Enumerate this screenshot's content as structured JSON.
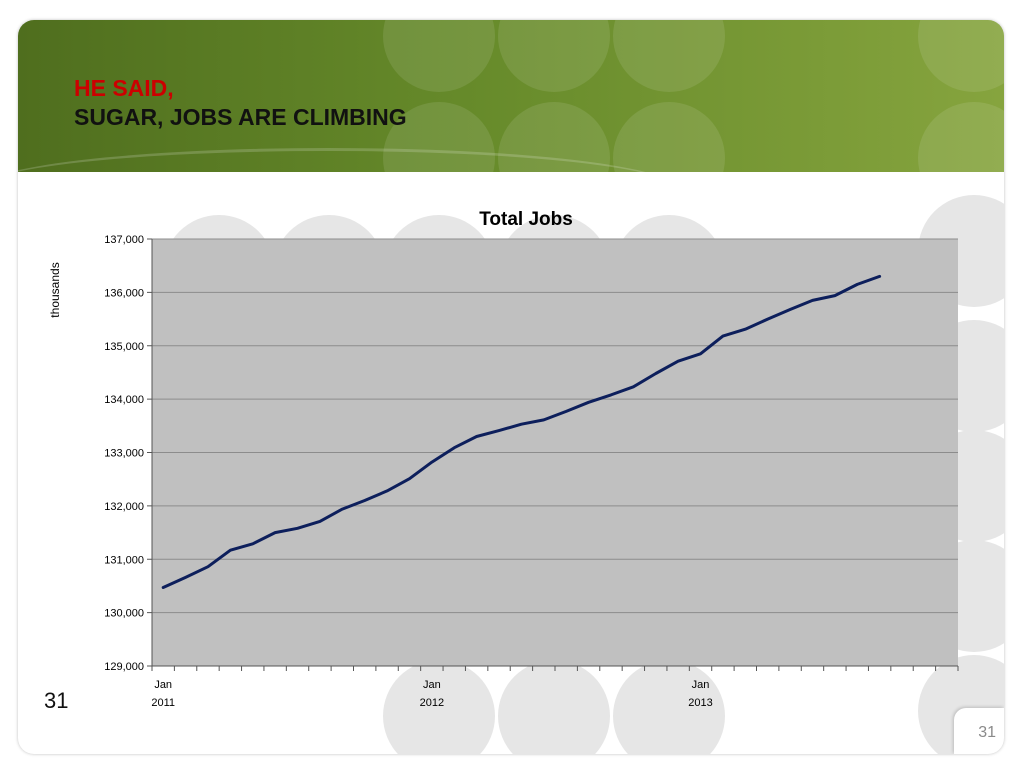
{
  "slide": {
    "title_line1": "HE SAID,",
    "title_line2": "SUGAR, JOBS ARE CLIMBING",
    "page_number_left": "31",
    "page_number_right": "31"
  },
  "colors": {
    "banner_green": "#668a2a",
    "title_red": "#cc0000",
    "plot_bg": "#c0c0c0",
    "line": "#0d1f5c",
    "bubble": "#e6e6e6"
  },
  "chart_data": {
    "type": "line",
    "title": "Total Jobs",
    "ylabel": "thousands",
    "xlabel": "",
    "ylim": [
      129000,
      137000
    ],
    "yticks": [
      "129,000",
      "130,000",
      "131,000",
      "132,000",
      "133,000",
      "134,000",
      "135,000",
      "136,000",
      "137,000"
    ],
    "xtick_labels": [
      {
        "index": 0,
        "line1": "Jan",
        "line2": "2011"
      },
      {
        "index": 12,
        "line1": "Jan",
        "line2": "2012"
      },
      {
        "index": 24,
        "line1": "Jan",
        "line2": "2013"
      }
    ],
    "num_categories": 36,
    "grid": true,
    "legend": "none",
    "series": [
      {
        "values": [
          130470,
          130660,
          130860,
          131170,
          131290,
          131500,
          131580,
          131710,
          131940,
          132100,
          132280,
          132510,
          132820,
          133090,
          133300,
          133410,
          133530,
          133610,
          133770,
          133940,
          134080,
          134230,
          134480,
          134710,
          134850,
          135180,
          135310,
          135500,
          135680,
          135850,
          135940,
          136150,
          136300
        ]
      }
    ]
  }
}
